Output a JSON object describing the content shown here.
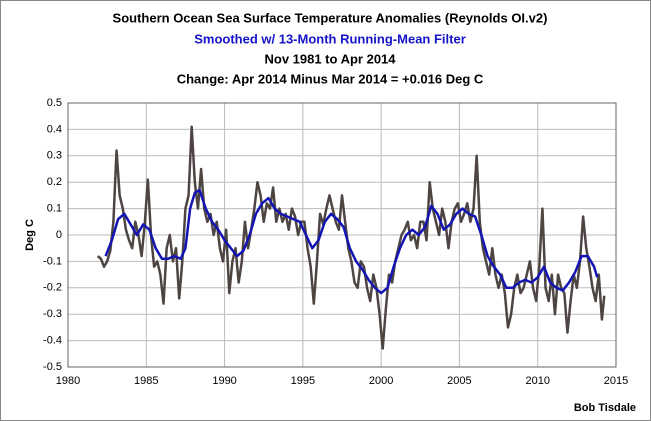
{
  "chart_data": {
    "type": "line",
    "title": "Southern Ocean Sea Surface Temperature Anomalies  (Reynolds OI.v2)",
    "subtitle": "Smoothed w/ 13-Month Running-Mean Filter",
    "period": "Nov 1981 to Apr 2014",
    "annotation": "Change: Apr 2014 Minus Mar 2014 = +0.016 Deg C",
    "credit": "Bob Tisdale",
    "y_label": "Deg C",
    "xlim": [
      1980,
      2015
    ],
    "xticks": [
      1980,
      1985,
      1990,
      1995,
      2000,
      2005,
      2010,
      2015
    ],
    "ylim": [
      -0.5,
      0.5
    ],
    "yticks": [
      0.5,
      0.4,
      0.3,
      0.2,
      0.1,
      0,
      -0.1,
      -0.2,
      -0.3,
      -0.4,
      -0.5
    ],
    "grid": true,
    "series": [
      {
        "color": "#4d4542",
        "x": [
          1981.9,
          1982.1,
          1982.3,
          1982.5,
          1982.7,
          1982.9,
          1983.1,
          1983.3,
          1983.5,
          1983.7,
          1983.9,
          1984.1,
          1984.3,
          1984.5,
          1984.7,
          1984.9,
          1985.1,
          1985.3,
          1985.5,
          1985.7,
          1985.9,
          1986.1,
          1986.3,
          1986.5,
          1986.7,
          1986.9,
          1987.1,
          1987.3,
          1987.5,
          1987.7,
          1987.9,
          1988.1,
          1988.3,
          1988.5,
          1988.7,
          1988.9,
          1989.1,
          1989.3,
          1989.5,
          1989.7,
          1989.9,
          1990.1,
          1990.3,
          1990.5,
          1990.7,
          1990.9,
          1991.1,
          1991.3,
          1991.5,
          1991.7,
          1991.9,
          1992.1,
          1992.3,
          1992.5,
          1992.7,
          1992.9,
          1993.1,
          1993.3,
          1993.5,
          1993.7,
          1993.9,
          1994.1,
          1994.3,
          1994.5,
          1994.7,
          1994.9,
          1995.1,
          1995.3,
          1995.5,
          1995.7,
          1995.9,
          1996.1,
          1996.3,
          1996.5,
          1996.7,
          1996.9,
          1997.1,
          1997.3,
          1997.5,
          1997.7,
          1997.9,
          1998.1,
          1998.3,
          1998.5,
          1998.7,
          1998.9,
          1999.1,
          1999.3,
          1999.5,
          1999.7,
          1999.9,
          2000.1,
          2000.3,
          2000.5,
          2000.7,
          2000.9,
          2001.1,
          2001.3,
          2001.5,
          2001.7,
          2001.9,
          2002.1,
          2002.3,
          2002.5,
          2002.7,
          2002.9,
          2003.1,
          2003.3,
          2003.5,
          2003.7,
          2003.9,
          2004.1,
          2004.3,
          2004.5,
          2004.7,
          2004.9,
          2005.1,
          2005.3,
          2005.5,
          2005.7,
          2005.9,
          2006.1,
          2006.3,
          2006.5,
          2006.7,
          2006.9,
          2007.1,
          2007.3,
          2007.5,
          2007.7,
          2007.9,
          2008.1,
          2008.3,
          2008.5,
          2008.7,
          2008.9,
          2009.1,
          2009.3,
          2009.5,
          2009.7,
          2009.9,
          2010.1,
          2010.3,
          2010.5,
          2010.7,
          2010.9,
          2011.1,
          2011.3,
          2011.5,
          2011.7,
          2011.9,
          2012.1,
          2012.3,
          2012.5,
          2012.7,
          2012.9,
          2013.1,
          2013.3,
          2013.5,
          2013.7,
          2013.9,
          2014.1,
          2014.25
        ],
        "values": [
          -0.08,
          -0.09,
          -0.12,
          -0.1,
          -0.06,
          0.05,
          0.32,
          0.15,
          0.1,
          0.02,
          -0.02,
          -0.05,
          0.05,
          0,
          -0.08,
          0.04,
          0.21,
          0,
          -0.12,
          -0.1,
          -0.15,
          -0.26,
          -0.05,
          0,
          -0.1,
          -0.05,
          -0.24,
          -0.1,
          0.1,
          0.15,
          0.41,
          0.2,
          0.1,
          0.25,
          0.1,
          0.05,
          0.08,
          0,
          0.05,
          -0.05,
          -0.1,
          0.02,
          -0.22,
          -0.1,
          -0.05,
          -0.18,
          -0.1,
          0.05,
          -0.05,
          0.02,
          0.1,
          0.2,
          0.15,
          0.05,
          0.12,
          0.1,
          0.18,
          0.05,
          0.1,
          0.05,
          0.08,
          0.02,
          0.1,
          0.07,
          0,
          0.05,
          0.05,
          -0.05,
          -0.12,
          -0.26,
          -0.1,
          0.08,
          0.04,
          0.1,
          0.15,
          0.1,
          0.05,
          0.02,
          0.15,
          0.05,
          -0.05,
          -0.1,
          -0.18,
          -0.2,
          -0.1,
          -0.12,
          -0.2,
          -0.25,
          -0.15,
          -0.2,
          -0.3,
          -0.43,
          -0.28,
          -0.15,
          -0.18,
          -0.1,
          -0.05,
          0,
          0.02,
          0.05,
          -0.02,
          0,
          -0.05,
          0.05,
          0.05,
          -0.02,
          0.2,
          0.1,
          0.05,
          0,
          0.1,
          0.05,
          -0.05,
          0.05,
          0.1,
          0.12,
          0.05,
          0.08,
          0.12,
          0.05,
          0.1,
          0.3,
          0.05,
          -0.05,
          -0.1,
          -0.15,
          -0.05,
          -0.15,
          -0.2,
          -0.15,
          -0.22,
          -0.35,
          -0.3,
          -0.2,
          -0.15,
          -0.22,
          -0.2,
          -0.15,
          -0.1,
          -0.2,
          -0.25,
          -0.12,
          0.1,
          -0.2,
          -0.25,
          -0.15,
          -0.3,
          -0.15,
          -0.2,
          -0.22,
          -0.37,
          -0.25,
          -0.15,
          -0.2,
          -0.1,
          0.07,
          -0.05,
          -0.12,
          -0.2,
          -0.25,
          -0.15,
          -0.32,
          -0.23
        ]
      },
      {
        "color": "#1414b4",
        "x": [
          1982.4,
          1982.8,
          1983.2,
          1983.6,
          1984.0,
          1984.4,
          1984.8,
          1985.2,
          1985.6,
          1986.0,
          1986.4,
          1986.8,
          1987.2,
          1987.5,
          1987.8,
          1988.1,
          1988.4,
          1988.8,
          1989.2,
          1989.6,
          1990.0,
          1990.4,
          1990.8,
          1991.2,
          1991.6,
          1992.0,
          1992.4,
          1992.8,
          1993.2,
          1993.6,
          1994.0,
          1994.4,
          1994.8,
          1995.2,
          1995.6,
          1996.0,
          1996.4,
          1996.8,
          1997.2,
          1997.6,
          1998.0,
          1998.4,
          1998.8,
          1999.2,
          1999.6,
          2000.0,
          2000.4,
          2000.8,
          2001.2,
          2001.6,
          2002.0,
          2002.4,
          2002.8,
          2003.2,
          2003.6,
          2004.0,
          2004.4,
          2004.8,
          2005.2,
          2005.6,
          2006.0,
          2006.4,
          2006.8,
          2007.2,
          2007.6,
          2008.0,
          2008.4,
          2008.8,
          2009.2,
          2009.6,
          2010.0,
          2010.4,
          2010.8,
          2011.2,
          2011.6,
          2012.0,
          2012.4,
          2012.8,
          2013.2,
          2013.6,
          2013.8
        ],
        "values": [
          -0.08,
          -0.02,
          0.06,
          0.08,
          0.04,
          0,
          0.04,
          0.02,
          -0.05,
          -0.09,
          -0.09,
          -0.08,
          -0.09,
          -0.05,
          0.1,
          0.16,
          0.17,
          0.1,
          0.05,
          0.02,
          -0.02,
          -0.05,
          -0.08,
          -0.06,
          0,
          0.08,
          0.12,
          0.14,
          0.1,
          0.08,
          0.07,
          0.06,
          0.05,
          0,
          -0.05,
          -0.02,
          0.05,
          0.08,
          0.06,
          0.03,
          -0.05,
          -0.1,
          -0.13,
          -0.17,
          -0.2,
          -0.22,
          -0.2,
          -0.12,
          -0.05,
          0,
          0.02,
          0,
          0.03,
          0.11,
          0.08,
          0.02,
          0.04,
          0.08,
          0.1,
          0.08,
          0.07,
          0,
          -0.08,
          -0.12,
          -0.15,
          -0.2,
          -0.2,
          -0.18,
          -0.17,
          -0.18,
          -0.16,
          -0.12,
          -0.18,
          -0.2,
          -0.21,
          -0.18,
          -0.14,
          -0.08,
          -0.08,
          -0.12,
          -0.16
        ]
      }
    ]
  }
}
